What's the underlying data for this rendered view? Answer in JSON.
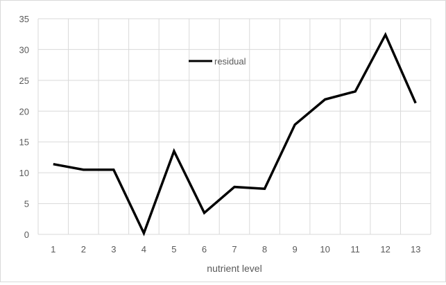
{
  "chart_data": {
    "type": "line",
    "title": "",
    "xlabel": "nutrient level",
    "ylabel": "",
    "categories": [
      "1",
      "2",
      "3",
      "4",
      "5",
      "6",
      "7",
      "8",
      "9",
      "10",
      "11",
      "12",
      "13"
    ],
    "series": [
      {
        "name": "residual",
        "values": [
          11.4,
          10.5,
          10.5,
          0.2,
          13.5,
          3.5,
          7.7,
          7.4,
          17.8,
          21.9,
          23.2,
          32.4,
          21.3
        ]
      }
    ],
    "ylim": [
      0,
      35
    ],
    "yticks": [
      "0",
      "5",
      "10",
      "15",
      "20",
      "25",
      "30",
      "35"
    ],
    "grid": "both",
    "legend_position": "inside-top-center",
    "colors": {
      "line": "#000000",
      "grid": "#d9d9d9",
      "text": "#595959",
      "border": "#d9d9d9"
    }
  }
}
